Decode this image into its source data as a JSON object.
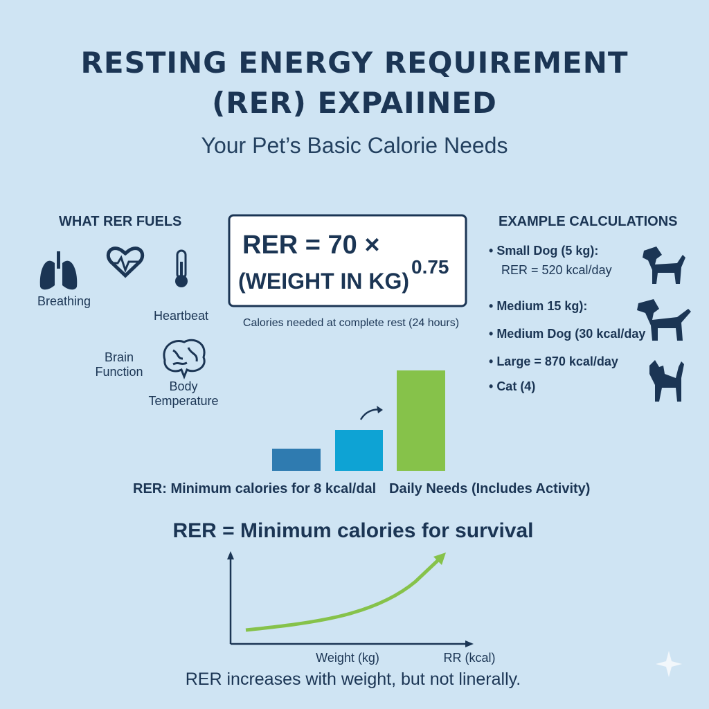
{
  "header": {
    "title_lines": [
      "RESTING ENERGY REQUIREMENT",
      "(RER) EXPAIINED"
    ],
    "subtitle": "Your Pet’s Basic Calorie Needs"
  },
  "fuels": {
    "heading": "WHAT RER FUELS",
    "items": [
      "Breathing",
      "Heartbeat",
      "Brain Function",
      "Body Temperature"
    ]
  },
  "formula": {
    "line1": "RER = 70 ×",
    "line2": "(WEIGHT IN KG)",
    "exponent": "0.75",
    "caption": "Calories needed at complete rest (24 hours)"
  },
  "examples": {
    "heading": "EXAMPLE CALCULATIONS",
    "items": [
      "Small Dog (5 kg):",
      "RER = 520 kcal/day",
      "Medium 15 kg):",
      "Medium Dog (30 kcal/day",
      "Large = 870 kcal/day",
      "Cat (4)"
    ]
  },
  "comparison": {
    "left_label": "RER: Minimum calories for 8 kcal/dal",
    "right_label": "Daily Needs (Includes Activity)"
  },
  "growth": {
    "heading": "RER = Minimum calories for survival",
    "x_label": "Weight (kg)",
    "y_label": "RR (kcal)",
    "caption": "RER increases with weight, but not linerally."
  }
}
